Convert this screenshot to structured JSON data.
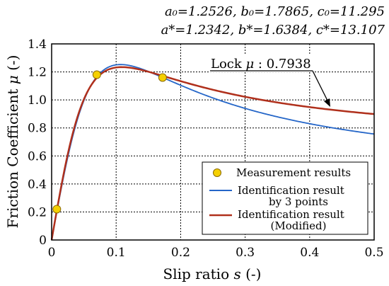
{
  "chart_data": {
    "type": "line",
    "xlabel_main": "Slip ratio ",
    "xlabel_var": "s",
    "xlabel_unit": " (-)",
    "ylabel_main": "Friction Coefficient ",
    "ylabel_var": "μ",
    "ylabel_unit": " (-)",
    "xlim": [
      0,
      0.5
    ],
    "ylim": [
      0,
      1.4
    ],
    "x_ticks": [
      "0",
      "0.1",
      "0.2",
      "0.3",
      "0.4",
      "0.5"
    ],
    "y_ticks": [
      "0",
      "0.2",
      "0.4",
      "0.6",
      "0.8",
      "1.0",
      "1.2",
      "1.4"
    ],
    "grid": true,
    "legend_position": "bottom-right",
    "parameters": {
      "line1": "a₀=1.2526, b₀=1.7865, c₀=11.295",
      "line2": "a*=1.2342, b*=1.6384, c*=13.107"
    },
    "annotation": {
      "lock_label": "Lock ",
      "lock_var": "μ",
      "lock_value": " : 0.7938"
    },
    "legend": [
      "Measurement results",
      "Identification result",
      "by 3 points",
      "Identification result",
      "(Modified)"
    ],
    "series": [
      {
        "name": "Measurement results",
        "kind": "points",
        "color": "#f5d000",
        "x": [
          0.008,
          0.07,
          0.172
        ],
        "y": [
          0.22,
          1.18,
          1.16
        ]
      },
      {
        "name": "Identification result by 3 points",
        "kind": "magic",
        "color": "#2566c8",
        "params": {
          "a": 1.2526,
          "b": 1.7865,
          "c": 11.295
        }
      },
      {
        "name": "Identification result (Modified)",
        "kind": "magic",
        "color": "#b0301c",
        "params": {
          "a": 1.2342,
          "b": 1.6384,
          "c": 13.107
        }
      }
    ]
  }
}
